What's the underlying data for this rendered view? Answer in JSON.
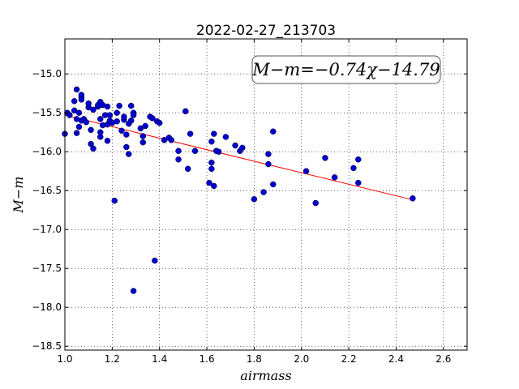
{
  "chart_data": {
    "type": "scatter",
    "title": "2022-02-27_213703",
    "xlabel": "airmass",
    "ylabel": "M−m",
    "xlim": [
      1.0,
      2.7
    ],
    "ylim": [
      -18.55,
      -14.55
    ],
    "x_ticks": [
      1.0,
      1.2,
      1.4,
      1.6,
      1.8,
      2.0,
      2.2,
      2.4,
      2.6
    ],
    "x_tick_labels": [
      "1.0",
      "1.2",
      "1.4",
      "1.6",
      "1.8",
      "2.0",
      "2.2",
      "2.4",
      "2.6"
    ],
    "y_ticks": [
      -15.0,
      -15.5,
      -16.0,
      -16.5,
      -17.0,
      -17.5,
      -18.0,
      -18.5
    ],
    "y_tick_labels": [
      "−15.0",
      "−15.5",
      "−16.0",
      "−16.5",
      "−17.0",
      "−17.5",
      "−18.0",
      "−18.5"
    ],
    "grid": true,
    "annotation": "M−m=−0.74χ−14.79",
    "fit_line": {
      "slope": -0.74,
      "intercept": -14.79,
      "x_range": [
        1.0,
        2.46
      ],
      "color": "#ff0000"
    },
    "point_color": "#0000cc",
    "points": [
      {
        "x": 1.0,
        "y": -15.77
      },
      {
        "x": 1.01,
        "y": -15.5
      },
      {
        "x": 1.02,
        "y": -15.53
      },
      {
        "x": 1.04,
        "y": -15.35
      },
      {
        "x": 1.04,
        "y": -15.47
      },
      {
        "x": 1.05,
        "y": -15.2
      },
      {
        "x": 1.05,
        "y": -15.58
      },
      {
        "x": 1.05,
        "y": -15.76
      },
      {
        "x": 1.06,
        "y": -15.68
      },
      {
        "x": 1.06,
        "y": -15.5
      },
      {
        "x": 1.07,
        "y": -15.3
      },
      {
        "x": 1.07,
        "y": -15.27
      },
      {
        "x": 1.07,
        "y": -15.33
      },
      {
        "x": 1.07,
        "y": -15.6
      },
      {
        "x": 1.08,
        "y": -15.58
      },
      {
        "x": 1.09,
        "y": -15.62
      },
      {
        "x": 1.1,
        "y": -15.43
      },
      {
        "x": 1.1,
        "y": -15.38
      },
      {
        "x": 1.11,
        "y": -15.72
      },
      {
        "x": 1.11,
        "y": -15.9
      },
      {
        "x": 1.12,
        "y": -15.46
      },
      {
        "x": 1.12,
        "y": -15.96
      },
      {
        "x": 1.14,
        "y": -15.42
      },
      {
        "x": 1.14,
        "y": -15.4
      },
      {
        "x": 1.15,
        "y": -15.58
      },
      {
        "x": 1.15,
        "y": -15.75
      },
      {
        "x": 1.15,
        "y": -15.81
      },
      {
        "x": 1.15,
        "y": -15.36
      },
      {
        "x": 1.16,
        "y": -15.4
      },
      {
        "x": 1.16,
        "y": -15.66
      },
      {
        "x": 1.17,
        "y": -15.53
      },
      {
        "x": 1.18,
        "y": -15.42
      },
      {
        "x": 1.18,
        "y": -15.65
      },
      {
        "x": 1.18,
        "y": -15.86
      },
      {
        "x": 1.19,
        "y": -15.53
      },
      {
        "x": 1.19,
        "y": -15.6
      },
      {
        "x": 1.2,
        "y": -15.63
      },
      {
        "x": 1.21,
        "y": -16.63
      },
      {
        "x": 1.22,
        "y": -15.5
      },
      {
        "x": 1.22,
        "y": -15.61
      },
      {
        "x": 1.23,
        "y": -15.41
      },
      {
        "x": 1.24,
        "y": -15.73
      },
      {
        "x": 1.25,
        "y": -15.59
      },
      {
        "x": 1.25,
        "y": -15.55
      },
      {
        "x": 1.26,
        "y": -15.78
      },
      {
        "x": 1.26,
        "y": -15.94
      },
      {
        "x": 1.27,
        "y": -16.03
      },
      {
        "x": 1.27,
        "y": -15.64
      },
      {
        "x": 1.28,
        "y": -15.6
      },
      {
        "x": 1.28,
        "y": -15.41
      },
      {
        "x": 1.29,
        "y": -15.5
      },
      {
        "x": 1.29,
        "y": -15.53
      },
      {
        "x": 1.29,
        "y": -17.79
      },
      {
        "x": 1.32,
        "y": -15.7
      },
      {
        "x": 1.33,
        "y": -15.8
      },
      {
        "x": 1.33,
        "y": -15.88
      },
      {
        "x": 1.34,
        "y": -15.67
      },
      {
        "x": 1.36,
        "y": -15.55
      },
      {
        "x": 1.37,
        "y": -15.57
      },
      {
        "x": 1.38,
        "y": -17.4
      },
      {
        "x": 1.39,
        "y": -15.61
      },
      {
        "x": 1.4,
        "y": -15.63
      },
      {
        "x": 1.42,
        "y": -15.85
      },
      {
        "x": 1.44,
        "y": -15.82
      },
      {
        "x": 1.45,
        "y": -15.85
      },
      {
        "x": 1.48,
        "y": -15.99
      },
      {
        "x": 1.48,
        "y": -16.1
      },
      {
        "x": 1.51,
        "y": -15.48
      },
      {
        "x": 1.52,
        "y": -16.22
      },
      {
        "x": 1.53,
        "y": -15.77
      },
      {
        "x": 1.55,
        "y": -15.99
      },
      {
        "x": 1.61,
        "y": -16.4
      },
      {
        "x": 1.62,
        "y": -16.22
      },
      {
        "x": 1.62,
        "y": -16.14
      },
      {
        "x": 1.62,
        "y": -15.87
      },
      {
        "x": 1.63,
        "y": -15.77
      },
      {
        "x": 1.63,
        "y": -16.44
      },
      {
        "x": 1.64,
        "y": -15.99
      },
      {
        "x": 1.65,
        "y": -16.0
      },
      {
        "x": 1.68,
        "y": -15.81
      },
      {
        "x": 1.72,
        "y": -15.92
      },
      {
        "x": 1.74,
        "y": -15.99
      },
      {
        "x": 1.75,
        "y": -15.95
      },
      {
        "x": 1.8,
        "y": -16.61
      },
      {
        "x": 1.84,
        "y": -16.52
      },
      {
        "x": 1.86,
        "y": -16.16
      },
      {
        "x": 1.86,
        "y": -16.03
      },
      {
        "x": 1.88,
        "y": -16.42
      },
      {
        "x": 1.88,
        "y": -15.74
      },
      {
        "x": 2.02,
        "y": -16.25
      },
      {
        "x": 2.06,
        "y": -16.66
      },
      {
        "x": 2.1,
        "y": -16.08
      },
      {
        "x": 2.14,
        "y": -16.33
      },
      {
        "x": 2.22,
        "y": -16.21
      },
      {
        "x": 2.24,
        "y": -16.4
      },
      {
        "x": 2.24,
        "y": -16.1
      },
      {
        "x": 2.47,
        "y": -16.6
      }
    ]
  }
}
